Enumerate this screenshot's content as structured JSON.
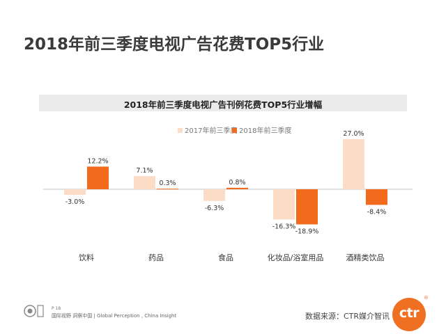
{
  "page": {
    "title": "2018年前三季度电视广告花费TOP5行业",
    "footer_page": "P 18",
    "footer_text": "国际视野  洞察中国 | Global Perception , China Insight",
    "source": "数据来源：CTR媒介智讯",
    "logo_text": "ctr",
    "logo_reg": "®"
  },
  "colors": {
    "series_2017": "#fbdcc6",
    "series_2018": "#f26b1d",
    "header_bg": "#ebebeb",
    "baseline": "#bfbfbf"
  },
  "chart_data": {
    "type": "bar",
    "title": "2018年前三季度电视广告刊例花费TOP5行业增幅",
    "categories": [
      "饮料",
      "药品",
      "食品",
      "化妆品/浴室用品",
      "酒精类饮品"
    ],
    "series": [
      {
        "name": "2017年前三季度",
        "values": [
          -3.0,
          7.1,
          -6.3,
          -16.3,
          27.0
        ],
        "labels": [
          "-3.0%",
          "7.1%",
          "-6.3%",
          "-16.3%",
          "27.0%"
        ]
      },
      {
        "name": "2018年前三季度",
        "values": [
          12.2,
          0.3,
          0.8,
          -18.9,
          -8.4
        ],
        "labels": [
          "12.2%",
          "0.3%",
          "0.8%",
          "-18.9%",
          "-8.4%"
        ]
      }
    ],
    "legend_position": "top",
    "grid": false,
    "ylim": [
      -20,
      30
    ]
  }
}
